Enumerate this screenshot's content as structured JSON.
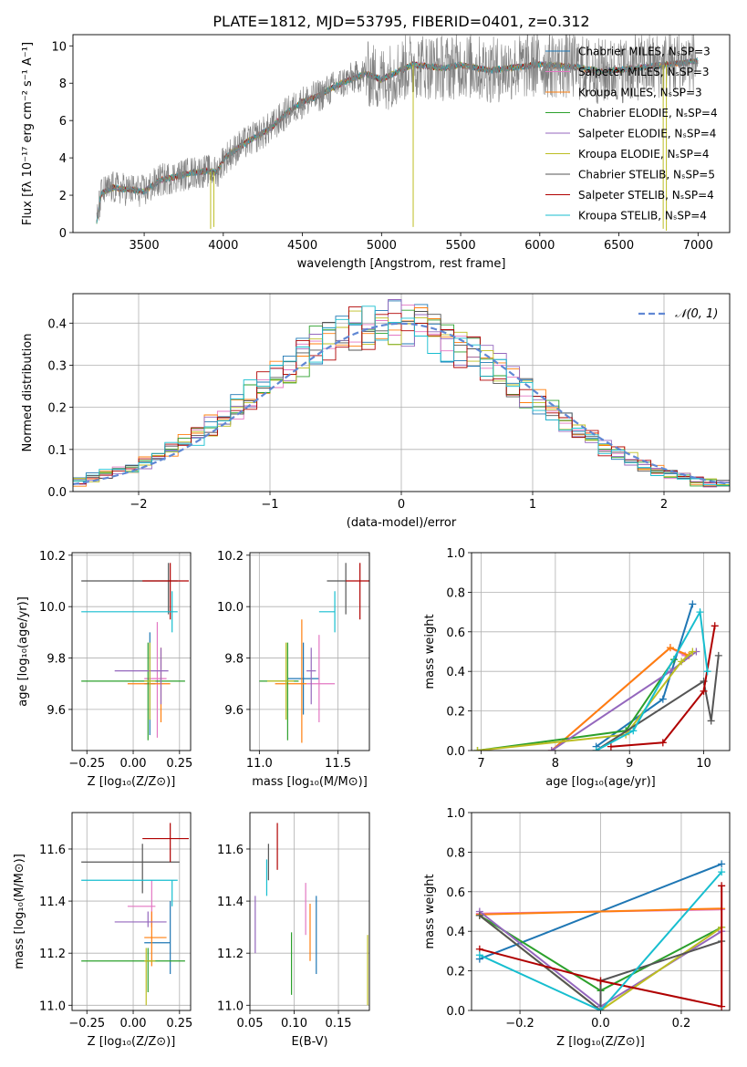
{
  "figure_title": "PLATE=1812, MJD=53795, FIBERID=0401, z=0.312",
  "model_colors": [
    "#1f77b4",
    "#e377c2",
    "#ff7f0e",
    "#2ca02c",
    "#9467bd",
    "#bcbd22",
    "#555555",
    "#b00000",
    "#17becf"
  ],
  "chart_data": [
    {
      "id": "spectrum",
      "type": "line",
      "title": "PLATE=1812, MJD=53795, FIBERID=0401, z=0.312",
      "xlabel": "wavelength [Angstrom, rest frame]",
      "ylabel": "Flux [fλ 10⁻¹⁷ erg cm⁻² s⁻¹ A⁻¹]",
      "xlim": [
        3050,
        7200
      ],
      "ylim": [
        0,
        10.6
      ],
      "xticks": [
        3500,
        4000,
        4500,
        5000,
        5500,
        6000,
        6500,
        7000
      ],
      "yticks": [
        0,
        2,
        4,
        6,
        8,
        10
      ],
      "legend_position": "upper right",
      "legend": [
        "Chabrier MILES, NₛSP=3",
        "Salpeter MILES, NₛSP=3",
        "Kroupa MILES, NₛSP=3",
        "Chabrier ELODIE, NₛSP=4",
        "Salpeter ELODIE, NₛSP=4",
        "Kroupa ELODIE, NₛSP=4",
        "Chabrier STELIB, NₛSP=5",
        "Salpeter STELIB, NₛSP=4",
        "Kroupa STELIB, NₛSP=4"
      ],
      "data_color": "#808080",
      "continuum": [
        [
          3200,
          0.6
        ],
        [
          3230,
          2.1
        ],
        [
          3300,
          2.4
        ],
        [
          3400,
          2.3
        ],
        [
          3500,
          2.2
        ],
        [
          3600,
          2.8
        ],
        [
          3700,
          3.0
        ],
        [
          3800,
          3.2
        ],
        [
          3900,
          3.3
        ],
        [
          3960,
          3.2
        ],
        [
          4000,
          3.9
        ],
        [
          4100,
          4.6
        ],
        [
          4200,
          5.1
        ],
        [
          4300,
          5.6
        ],
        [
          4400,
          6.4
        ],
        [
          4500,
          7.0
        ],
        [
          4600,
          7.3
        ],
        [
          4700,
          7.8
        ],
        [
          4800,
          8.2
        ],
        [
          4900,
          8.5
        ],
        [
          5000,
          8.2
        ],
        [
          5100,
          8.6
        ],
        [
          5200,
          9.0
        ],
        [
          5300,
          8.9
        ],
        [
          5400,
          8.8
        ],
        [
          5500,
          9.0
        ],
        [
          5600,
          8.8
        ],
        [
          5700,
          8.7
        ],
        [
          5800,
          8.8
        ],
        [
          5900,
          8.9
        ],
        [
          6000,
          9.0
        ],
        [
          6200,
          8.9
        ],
        [
          6400,
          8.6
        ],
        [
          6600,
          8.8
        ],
        [
          6800,
          9.0
        ],
        [
          7000,
          9.2
        ]
      ]
    },
    {
      "id": "residuals",
      "type": "line",
      "xlabel": "(data-model)/error",
      "ylabel": "Normed distribution",
      "xlim": [
        -2.5,
        2.5
      ],
      "ylim": [
        0,
        0.47
      ],
      "xticks": [
        -2,
        -1,
        0,
        1,
        2
      ],
      "yticks": [
        0.0,
        0.1,
        0.2,
        0.3,
        0.4
      ],
      "grid": true,
      "legend_position": "upper right",
      "reference_curve": "𝒩(0, 1)",
      "reference_color": "#6188d4"
    },
    {
      "id": "age-vs-Z",
      "type": "scatter",
      "xlabel": "Z [log₁₀(Z/Z⊙)]",
      "ylabel": "age  [log₁₀(age/yr)]",
      "xlim": [
        -0.33,
        0.31
      ],
      "ylim": [
        9.44,
        10.21
      ],
      "xticks": [
        -0.25,
        0.0,
        0.25
      ],
      "yticks": [
        9.6,
        9.8,
        10.0,
        10.2
      ],
      "grid": true,
      "points": [
        {
          "x": 0.09,
          "y": 9.7,
          "xe": [
            0.06,
            0.12
          ],
          "ye": [
            9.5,
            9.9
          ]
        },
        {
          "x": 0.13,
          "y": 9.72,
          "xe": [
            0.06,
            0.18
          ],
          "ye": [
            9.49,
            9.94
          ]
        },
        {
          "x": 0.15,
          "y": 9.7,
          "xe": [
            -0.03,
            0.2
          ],
          "ye": [
            9.55,
            9.84
          ]
        },
        {
          "x": 0.08,
          "y": 9.71,
          "xe": [
            -0.28,
            0.28
          ],
          "ye": [
            9.48,
            9.86
          ]
        },
        {
          "x": 0.15,
          "y": 9.75,
          "xe": [
            -0.1,
            0.19
          ],
          "ye": [
            9.62,
            9.84
          ]
        },
        {
          "x": 0.09,
          "y": 9.71,
          "xe": [
            0.06,
            0.12
          ],
          "ye": [
            9.56,
            9.86
          ]
        },
        {
          "x": 0.19,
          "y": 10.1,
          "xe": [
            -0.28,
            0.24
          ],
          "ye": [
            9.97,
            10.17
          ]
        },
        {
          "x": 0.2,
          "y": 10.1,
          "xe": [
            0.05,
            0.3
          ],
          "ye": [
            9.95,
            10.17
          ]
        },
        {
          "x": 0.21,
          "y": 9.98,
          "xe": [
            -0.28,
            0.24
          ],
          "ye": [
            9.9,
            10.06
          ]
        }
      ]
    },
    {
      "id": "age-vs-mass",
      "type": "scatter",
      "xlabel": "mass [log₁₀(M/M⊙)]",
      "xlim": [
        10.94,
        11.7
      ],
      "ylim": [
        9.44,
        10.21
      ],
      "xticks": [
        11.0,
        11.5
      ],
      "yticks": [
        9.6,
        9.8,
        10.0,
        10.2
      ],
      "grid": true,
      "points": [
        {
          "x": 11.28,
          "y": 9.72,
          "xe": [
            11.18,
            11.38
          ],
          "ye": [
            9.58,
            9.86
          ]
        },
        {
          "x": 11.38,
          "y": 9.7,
          "xe": [
            11.3,
            11.48
          ],
          "ye": [
            9.55,
            9.89
          ]
        },
        {
          "x": 11.27,
          "y": 9.7,
          "xe": [
            11.1,
            11.3
          ],
          "ye": [
            9.47,
            9.95
          ]
        },
        {
          "x": 11.18,
          "y": 9.71,
          "xe": [
            11.0,
            11.25
          ],
          "ye": [
            9.48,
            9.86
          ]
        },
        {
          "x": 11.33,
          "y": 9.75,
          "xe": [
            11.3,
            11.36
          ],
          "ye": [
            9.62,
            9.84
          ]
        },
        {
          "x": 11.17,
          "y": 9.71,
          "xe": [
            11.05,
            11.22
          ],
          "ye": [
            9.56,
            9.86
          ]
        },
        {
          "x": 11.55,
          "y": 10.1,
          "xe": [
            11.43,
            11.55
          ],
          "ye": [
            9.97,
            10.17
          ]
        },
        {
          "x": 11.64,
          "y": 10.1,
          "xe": [
            11.55,
            11.7
          ],
          "ye": [
            9.95,
            10.17
          ]
        },
        {
          "x": 11.48,
          "y": 9.98,
          "xe": [
            11.38,
            11.48
          ],
          "ye": [
            9.9,
            10.06
          ]
        }
      ]
    },
    {
      "id": "weight-vs-age",
      "type": "line",
      "xlabel": "age  [log₁₀(age/yr)]",
      "ylabel": "mass weight",
      "xlim": [
        6.87,
        10.35
      ],
      "ylim": [
        0.0,
        1.0
      ],
      "xticks": [
        7,
        8,
        9,
        10
      ],
      "yticks": [
        0.0,
        0.2,
        0.4,
        0.6,
        0.8,
        1.0
      ],
      "grid": true,
      "series": [
        {
          "x": [
            8.55,
            9.45,
            9.85
          ],
          "y": [
            0.02,
            0.26,
            0.74
          ]
        },
        {
          "x": [
            7.95,
            9.55,
            9.75
          ],
          "y": [
            0.0,
            0.52,
            0.48
          ]
        },
        {
          "x": [
            7.95,
            9.55,
            9.8
          ],
          "y": [
            0.0,
            0.52,
            0.48
          ]
        },
        {
          "x": [
            6.95,
            8.95,
            9.6
          ],
          "y": [
            0.0,
            0.1,
            0.46
          ]
        },
        {
          "x": [
            7.95,
            9.55,
            9.9
          ],
          "y": [
            0.0,
            0.4,
            0.5
          ]
        },
        {
          "x": [
            6.95,
            8.95,
            9.7,
            9.85
          ],
          "y": [
            0.0,
            0.08,
            0.45,
            0.5
          ]
        },
        {
          "x": [
            8.55,
            10.0,
            10.1,
            10.2
          ],
          "y": [
            0.0,
            0.35,
            0.15,
            0.48
          ]
        },
        {
          "x": [
            8.75,
            9.45,
            10.0,
            10.15
          ],
          "y": [
            0.02,
            0.04,
            0.3,
            0.63
          ]
        },
        {
          "x": [
            8.55,
            9.05,
            9.95,
            10.05
          ],
          "y": [
            0.0,
            0.1,
            0.7,
            0.4
          ]
        }
      ]
    },
    {
      "id": "mass-vs-Z",
      "type": "scatter",
      "xlabel": "Z [log₁₀(Z/Z⊙)]",
      "ylabel": "mass [log₁₀(M/M⊙)]",
      "xlim": [
        -0.33,
        0.31
      ],
      "ylim": [
        10.98,
        11.74
      ],
      "xticks": [
        -0.25,
        0.0,
        0.25
      ],
      "yticks": [
        11.0,
        11.2,
        11.4,
        11.6
      ],
      "grid": true,
      "points": [
        {
          "x": 0.2,
          "y": 11.24,
          "xe": [
            0.06,
            0.2
          ],
          "ye": [
            11.12,
            11.4
          ]
        },
        {
          "x": 0.1,
          "y": 11.38,
          "xe": [
            -0.03,
            0.12
          ],
          "ye": [
            11.3,
            11.48
          ]
        },
        {
          "x": 0.1,
          "y": 11.26,
          "xe": [
            0.06,
            0.18
          ],
          "ye": [
            11.15,
            11.36
          ]
        },
        {
          "x": 0.08,
          "y": 11.17,
          "xe": [
            -0.28,
            0.28
          ],
          "ye": [
            11.05,
            11.22
          ]
        },
        {
          "x": 0.08,
          "y": 11.32,
          "xe": [
            -0.1,
            0.18
          ],
          "ye": [
            11.3,
            11.36
          ]
        },
        {
          "x": 0.07,
          "y": 11.17,
          "xe": [
            0.06,
            0.12
          ],
          "ye": [
            11.0,
            11.22
          ]
        },
        {
          "x": 0.05,
          "y": 11.55,
          "xe": [
            -0.28,
            0.25
          ],
          "ye": [
            11.43,
            11.62
          ]
        },
        {
          "x": 0.2,
          "y": 11.64,
          "xe": [
            0.05,
            0.3
          ],
          "ye": [
            11.55,
            11.7
          ]
        },
        {
          "x": 0.21,
          "y": 11.48,
          "xe": [
            -0.28,
            0.24
          ],
          "ye": [
            11.38,
            11.48
          ]
        }
      ]
    },
    {
      "id": "mass-vs-ebv",
      "type": "scatter",
      "xlabel": "E(B-V)",
      "xlim": [
        0.05,
        0.185
      ],
      "ylim": [
        10.98,
        11.74
      ],
      "xticks": [
        0.05,
        0.1,
        0.15
      ],
      "yticks": [
        11.0,
        11.2,
        11.4,
        11.6
      ],
      "grid": true,
      "points": [
        {
          "x": 0.125,
          "ye": [
            11.12,
            11.42
          ]
        },
        {
          "x": 0.113,
          "ye": [
            11.27,
            11.47
          ]
        },
        {
          "x": 0.118,
          "ye": [
            11.17,
            11.39
          ]
        },
        {
          "x": 0.097,
          "ye": [
            11.04,
            11.28
          ]
        },
        {
          "x": 0.056,
          "ye": [
            11.2,
            11.42
          ]
        },
        {
          "x": 0.183,
          "ye": [
            11.0,
            11.27
          ]
        },
        {
          "x": 0.071,
          "ye": [
            11.48,
            11.62
          ]
        },
        {
          "x": 0.081,
          "ye": [
            11.52,
            11.7
          ]
        },
        {
          "x": 0.069,
          "ye": [
            11.42,
            11.56
          ]
        }
      ]
    },
    {
      "id": "weight-vs-Z",
      "type": "line",
      "xlabel": "Z [log₁₀(Z/Z⊙)]",
      "ylabel": "mass weight",
      "xlim": [
        -0.32,
        0.32
      ],
      "ylim": [
        0.0,
        1.0
      ],
      "xticks": [
        -0.2,
        0.0,
        0.2
      ],
      "yticks": [
        0.0,
        0.2,
        0.4,
        0.6,
        0.8,
        1.0
      ],
      "grid": true,
      "series": [
        {
          "x": [
            -0.3,
            0.3
          ],
          "y": [
            0.26,
            0.74
          ]
        },
        {
          "x": [
            -0.3,
            0.3
          ],
          "y": [
            0.49,
            0.51
          ]
        },
        {
          "x": [
            -0.3,
            0.3
          ],
          "y": [
            0.485,
            0.515
          ]
        },
        {
          "x": [
            -0.3,
            0.0,
            0.3
          ],
          "y": [
            0.48,
            0.1,
            0.42
          ]
        },
        {
          "x": [
            -0.3,
            0.0,
            0.3
          ],
          "y": [
            0.5,
            0.02,
            0.4
          ]
        },
        {
          "x": [
            -0.3,
            0.0,
            0.3
          ],
          "y": [
            0.48,
            0.0,
            0.42
          ]
        },
        {
          "x": [
            -0.3,
            0.0,
            0.0,
            0.3
          ],
          "y": [
            0.48,
            0.0,
            0.15,
            0.35
          ]
        },
        {
          "x": [
            -0.3,
            0.0,
            0.3,
            0.3
          ],
          "y": [
            0.31,
            0.15,
            0.02,
            0.63
          ]
        },
        {
          "x": [
            -0.3,
            0.0,
            0.3
          ],
          "y": [
            0.28,
            0.0,
            0.7
          ]
        }
      ]
    }
  ]
}
